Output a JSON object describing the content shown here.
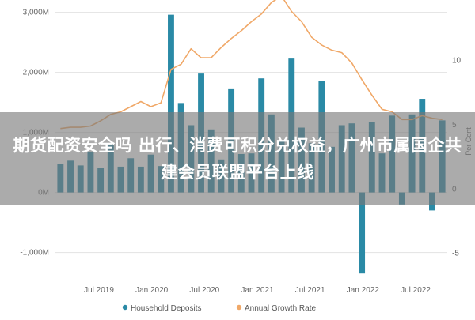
{
  "headline": "期货配资安全吗 出行、消费可积分兑权益，广州市属国企共建会员联盟平台上线",
  "chart_data": {
    "type": "bar+line",
    "series": [
      {
        "name": "Household Deposits",
        "type": "bar",
        "axis": "left",
        "color": "#2a8aa6",
        "values": [
          480,
          530,
          450,
          680,
          410,
          800,
          430,
          570,
          430,
          630,
          440,
          2960,
          1490,
          1120,
          1980,
          1050,
          550,
          1720,
          640,
          650,
          1900,
          1300,
          850,
          2230,
          1080,
          820,
          1850,
          760,
          1120,
          1150,
          -1350,
          1170,
          650,
          1280,
          -200,
          1300,
          1560,
          -300,
          1200
        ]
      },
      {
        "name": "Annual Growth Rate",
        "type": "line",
        "axis": "right",
        "color": "#f0a868",
        "values": [
          4.7,
          4.8,
          4.8,
          4.9,
          5.3,
          5.8,
          6.0,
          6.4,
          6.8,
          6.4,
          6.7,
          9.3,
          9.7,
          10.9,
          10.2,
          10.2,
          11.0,
          11.7,
          12.3,
          13.0,
          13.6,
          14.5,
          15.0,
          13.8,
          13.0,
          11.8,
          11.2,
          10.8,
          10.6,
          9.8,
          8.5,
          7.3,
          6.2,
          6.0,
          5.4,
          5.4,
          5.7,
          5.5,
          5.4
        ]
      }
    ],
    "x_tick_labels": [
      "Jul 2019",
      "Jan 2020",
      "Jul 2020",
      "Jan 2021",
      "Jul 2021",
      "Jan 2022",
      "Jul 2022"
    ],
    "y_left": {
      "ticks": [
        -1000,
        0,
        1000,
        2000,
        3000
      ],
      "labels": [
        "-1,000M",
        "0M",
        "1,000M",
        "2,000M",
        "3,000M"
      ],
      "range": [
        -1400,
        3100
      ]
    },
    "y_right": {
      "ticks": [
        -5,
        0,
        5,
        10
      ],
      "labels": [
        "-5",
        "0",
        "5",
        "10"
      ],
      "range": [
        -6.8,
        14.2
      ],
      "label": "Per Cent"
    },
    "legend": {
      "position": "bottom",
      "items": [
        "Household Deposits",
        "Annual Growth Rate"
      ]
    }
  }
}
